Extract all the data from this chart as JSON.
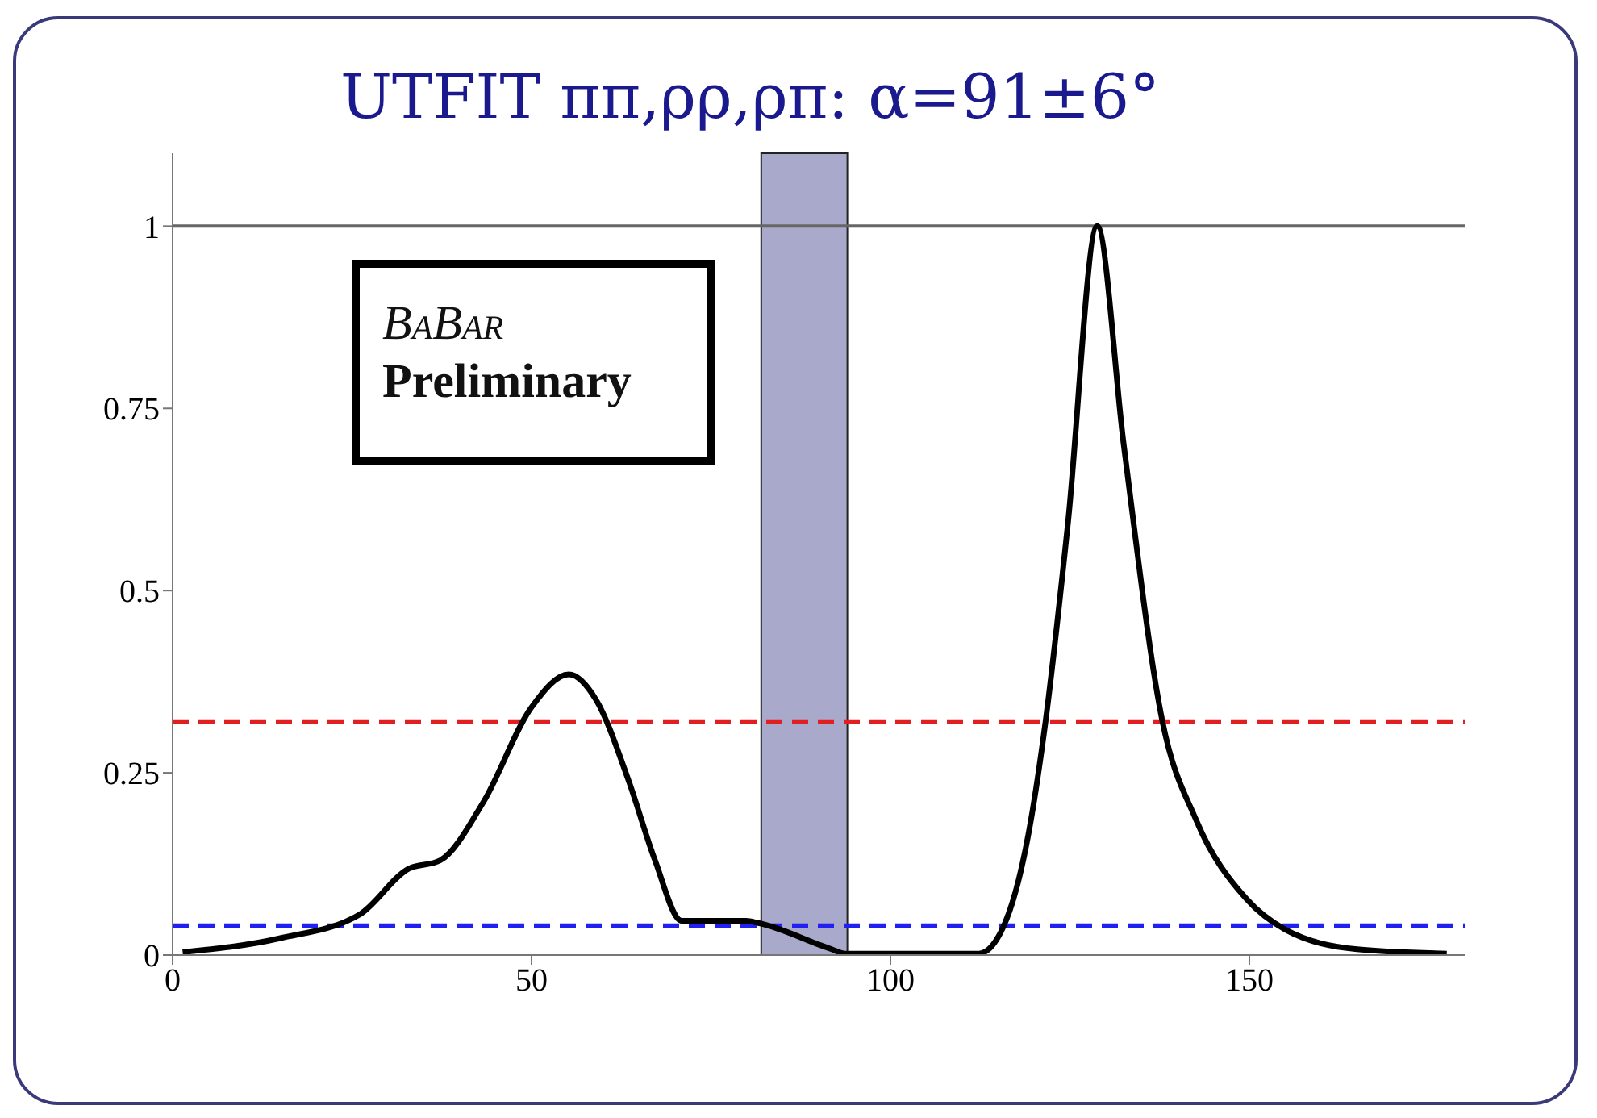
{
  "chart_data": {
    "type": "line",
    "title": "UTFIT ππ,ρρ,ρπ: α=91±6°",
    "annotations": [
      "BaBar",
      "Preliminary"
    ],
    "series": [
      {
        "color": "#000000",
        "x": [
          1.4,
          14.9,
          26.1,
          32.8,
          37.3,
          43.3,
          50,
          55.2,
          59,
          63.5,
          67.2,
          70.9,
          79.9,
          81.6,
          91.8,
          93.7,
          112.3,
          115.4,
          119.3,
          121.6,
          124.7,
          128.8,
          132.5,
          137.9,
          142.6,
          149.6,
          155,
          165,
          177.5
        ],
        "values": [
          0.004,
          0.023,
          0.056,
          0.118,
          0.13,
          0.21,
          0.34,
          0.385,
          0.35,
          0.24,
          0.13,
          0.047,
          0.047,
          0.044,
          0.008,
          0.002,
          0.002,
          0.032,
          0.17,
          0.32,
          0.59,
          1.0,
          0.7,
          0.32,
          0.185,
          0.077,
          0.035,
          0.008,
          0.002
        ]
      }
    ],
    "xlim": [
      0,
      180
    ],
    "xticks": [
      0,
      50,
      100,
      150
    ],
    "ylim": [
      0,
      1.1
    ],
    "yticks": [
      0,
      0.25,
      0.5,
      0.75,
      1
    ],
    "ref_lines": [
      {
        "axis": "y",
        "value": 1,
        "color": "#666666",
        "line_style": "solid"
      },
      {
        "axis": "y",
        "value": 0.32,
        "color": "#e02020",
        "line_style": "dashed"
      },
      {
        "axis": "y",
        "value": 0.04,
        "color": "#2020f0",
        "line_style": "dashed"
      }
    ],
    "bands": [
      {
        "axis": "x",
        "from": 82,
        "to": 94,
        "color": "#a9aacb"
      }
    ],
    "grid": false,
    "legend": false,
    "marker": "none",
    "line_style": "solid"
  }
}
